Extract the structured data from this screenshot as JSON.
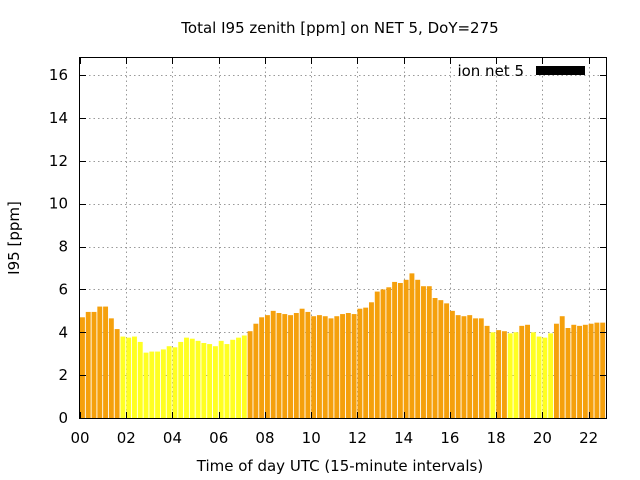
{
  "chart_data": {
    "type": "bar",
    "title": "Total I95 zenith [ppm] on NET 5, DoY=275",
    "xlabel": "Time of day UTC (15-minute intervals)",
    "ylabel": "I95 [ppm]",
    "ylim": [
      0,
      16.8
    ],
    "yticks": [
      "0",
      "2",
      "4",
      "6",
      "8",
      "10",
      "12",
      "14",
      "16"
    ],
    "xticks": [
      "00",
      "02",
      "04",
      "06",
      "08",
      "10",
      "12",
      "14",
      "16",
      "18",
      "20",
      "22"
    ],
    "grid": true,
    "legend": {
      "label": "ion net 5",
      "position": "top-right",
      "swatch_color": "#000000"
    },
    "colors": {
      "orange": "#f5a00c",
      "yellow": "#ffff22"
    },
    "interval_hours": 0.25,
    "values": [
      4.7,
      4.95,
      4.95,
      5.2,
      5.2,
      4.65,
      4.15,
      3.8,
      3.75,
      3.8,
      3.55,
      3.05,
      3.1,
      3.1,
      3.2,
      3.35,
      3.3,
      3.55,
      3.75,
      3.7,
      3.6,
      3.5,
      3.45,
      3.35,
      3.6,
      3.45,
      3.65,
      3.75,
      3.85,
      4.05,
      4.4,
      4.7,
      4.8,
      5.0,
      4.9,
      4.85,
      4.8,
      4.9,
      5.1,
      4.95,
      4.75,
      4.8,
      4.75,
      4.65,
      4.75,
      4.85,
      4.9,
      4.85,
      5.1,
      5.15,
      5.4,
      5.9,
      6.0,
      6.1,
      6.35,
      6.3,
      6.45,
      6.75,
      6.45,
      6.15,
      6.15,
      5.6,
      5.5,
      5.35,
      5.0,
      4.8,
      4.75,
      4.8,
      4.65,
      4.65,
      4.3,
      4.0,
      4.1,
      4.05,
      3.95,
      4.0,
      4.3,
      4.35,
      4.0,
      3.8,
      3.75,
      3.95,
      4.4,
      4.75,
      4.2,
      4.35,
      4.3,
      4.35,
      4.4,
      4.45,
      4.45
    ],
    "bar_colors": [
      "orange",
      "orange",
      "orange",
      "orange",
      "orange",
      "orange",
      "orange",
      "yellow",
      "yellow",
      "yellow",
      "yellow",
      "yellow",
      "yellow",
      "yellow",
      "yellow",
      "yellow",
      "yellow",
      "yellow",
      "yellow",
      "yellow",
      "yellow",
      "yellow",
      "yellow",
      "yellow",
      "yellow",
      "yellow",
      "yellow",
      "yellow",
      "yellow",
      "orange",
      "orange",
      "orange",
      "orange",
      "orange",
      "orange",
      "orange",
      "orange",
      "orange",
      "orange",
      "orange",
      "orange",
      "orange",
      "orange",
      "orange",
      "orange",
      "orange",
      "orange",
      "orange",
      "orange",
      "orange",
      "orange",
      "orange",
      "orange",
      "orange",
      "orange",
      "orange",
      "orange",
      "orange",
      "orange",
      "orange",
      "orange",
      "orange",
      "orange",
      "orange",
      "orange",
      "orange",
      "orange",
      "orange",
      "orange",
      "orange",
      "orange",
      "yellow",
      "orange",
      "orange",
      "yellow",
      "yellow",
      "orange",
      "orange",
      "yellow",
      "yellow",
      "yellow",
      "yellow",
      "orange",
      "orange",
      "orange",
      "orange",
      "orange",
      "orange",
      "orange",
      "orange",
      "orange"
    ]
  }
}
